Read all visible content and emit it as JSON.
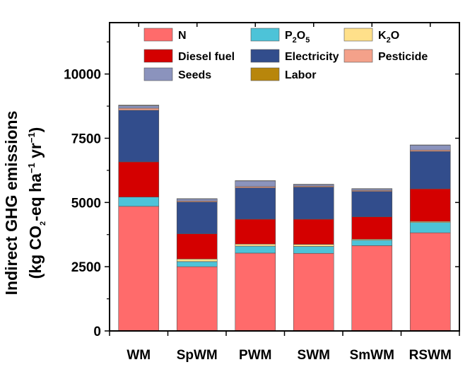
{
  "chart_data": {
    "type": "bar",
    "stacked": true,
    "title": "",
    "ylabel_line1": "Indirect GHG emissions",
    "ylabel_line2": {
      "prefix": "(kg CO",
      "sub": "2",
      "mid": "-eq ha",
      "sup1": "−1",
      "mid2": " yr",
      "sup2": "−1",
      "suffix": ")"
    },
    "xlabel": "",
    "ylim": [
      0,
      12000
    ],
    "yticks": [
      0,
      2500,
      5000,
      7500,
      10000
    ],
    "ytick_labels": [
      "0",
      "2500",
      "5000",
      "7500",
      "10000"
    ],
    "categories": [
      "WM",
      "SpWM",
      "PWM",
      "SWM",
      "SmWM",
      "RSWM"
    ],
    "series": [
      {
        "name": "N",
        "key": "N",
        "color": "#ff6b6b",
        "values": [
          4850,
          2500,
          3030,
          3020,
          3320,
          3820
        ]
      },
      {
        "name": "P2O5",
        "key": "P2O5",
        "color": "#4dc3d8",
        "values": [
          360,
          200,
          270,
          270,
          210,
          400
        ]
      },
      {
        "name": "K2O",
        "key": "K2O",
        "color": "#ffe08a",
        "values": [
          0,
          100,
          80,
          80,
          40,
          40
        ]
      },
      {
        "name": "Diesel fuel",
        "key": "Diesel fuel",
        "color": "#d40000",
        "values": [
          1370,
          980,
          970,
          980,
          870,
          1270
        ]
      },
      {
        "name": "Electricity",
        "key": "Electricity",
        "color": "#324d8c",
        "values": [
          2010,
          1240,
          1220,
          1250,
          990,
          1460
        ]
      },
      {
        "name": "Pesticide",
        "key": "Pesticide",
        "color": "#f4a18a",
        "values": [
          80,
          40,
          50,
          40,
          40,
          50
        ]
      },
      {
        "name": "Seeds",
        "key": "Seeds",
        "color": "#8b93bd",
        "values": [
          100,
          80,
          220,
          60,
          60,
          190
        ]
      },
      {
        "name": "Labor",
        "key": "Labor",
        "color": "#b8860b",
        "values": [
          20,
          10,
          10,
          10,
          10,
          10
        ]
      }
    ],
    "legend": {
      "placement": "top",
      "entries": [
        {
          "key": "N",
          "text": "N"
        },
        {
          "key": "P2O5",
          "parts": [
            {
              "t": "P",
              "s": "base"
            },
            {
              "t": "2",
              "s": "sub"
            },
            {
              "t": "O",
              "s": "base"
            },
            {
              "t": "5",
              "s": "sub"
            }
          ]
        },
        {
          "key": "K2O",
          "parts": [
            {
              "t": "K",
              "s": "base"
            },
            {
              "t": "2",
              "s": "sub"
            },
            {
              "t": "O",
              "s": "base"
            }
          ]
        },
        {
          "key": "Diesel fuel",
          "text": "Diesel fuel"
        },
        {
          "key": "Electricity",
          "text": "Electricity"
        },
        {
          "key": "Pesticide",
          "text": "Pesticide"
        },
        {
          "key": "Seeds",
          "text": "Seeds"
        },
        {
          "key": "Labor",
          "text": "Labor"
        }
      ]
    }
  }
}
